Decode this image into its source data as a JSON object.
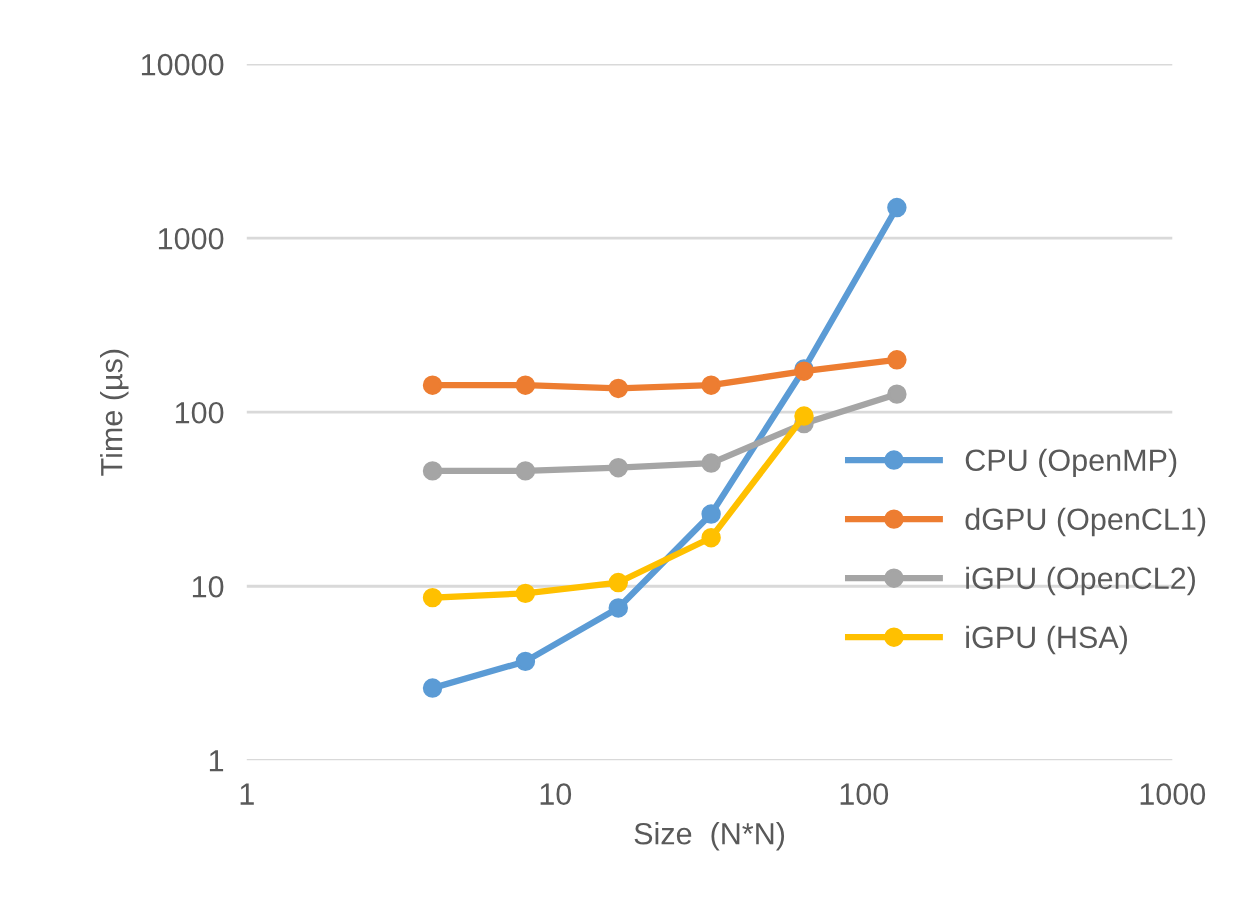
{
  "chart_data": {
    "type": "line",
    "xlabel": "Size  (N*N)",
    "ylabel": "Time (µs)",
    "log": "xy",
    "x": [
      4,
      8,
      16,
      32,
      64,
      128
    ],
    "xlim": [
      1,
      1000
    ],
    "xticks": [
      1,
      10,
      100,
      1000
    ],
    "ylim": [
      1,
      10000
    ],
    "yticks": [
      1,
      10,
      100,
      1000,
      10000
    ],
    "grid": "y",
    "legend": "right",
    "marker": "circle",
    "line_style": "solid",
    "series": [
      {
        "name": "CPU (OpenMP)",
        "color": "#5b9bd5",
        "values": [
          2.6,
          3.7,
          7.5,
          26,
          177,
          1500
        ]
      },
      {
        "name": "dGPU (OpenCL1)",
        "color": "#ed7d31",
        "values": [
          143,
          143,
          137,
          143,
          172,
          200
        ]
      },
      {
        "name": "iGPU (OpenCL2)",
        "color": "#a5a5a5",
        "values": [
          46,
          46,
          48,
          51,
          86,
          127
        ]
      },
      {
        "name": "iGPU (HSA)",
        "color": "#ffc000",
        "values": [
          8.6,
          9.1,
          10.5,
          19,
          95,
          null
        ]
      }
    ]
  }
}
